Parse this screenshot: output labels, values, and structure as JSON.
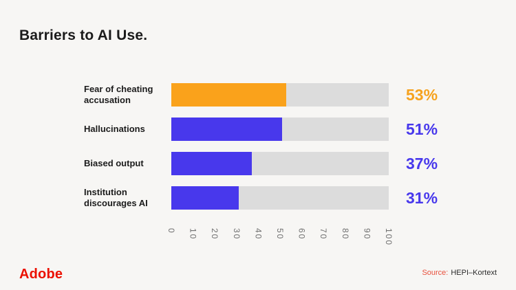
{
  "slide": {
    "background": "#F7F6F4",
    "title": "Barriers to AI Use.",
    "footer": {
      "logo_text": "Adobe",
      "logo_color": "#EB1000",
      "source_label": "Source:",
      "source_label_color": "#E8503C",
      "source_value": "HEPI–Kortext"
    }
  },
  "chart_data": {
    "type": "bar",
    "orientation": "horizontal",
    "title": "Barriers to AI Use.",
    "categories": [
      "Fear of cheating accusation",
      "Hallucinations",
      "Biased output",
      "Institution discourages AI"
    ],
    "values": [
      53,
      51,
      37,
      31
    ],
    "value_labels": [
      "53%",
      "51%",
      "37%",
      "31%"
    ],
    "bar_colors": [
      "#FAA21B",
      "#4838EC",
      "#4838EC",
      "#4838EC"
    ],
    "value_label_colors": [
      "#F6A21E",
      "#4838EC",
      "#4838EC",
      "#4838EC"
    ],
    "track_color": "#DCDCDC",
    "xlabel": "",
    "ylabel": "",
    "xlim": [
      0,
      100
    ],
    "x_ticks": [
      0,
      10,
      20,
      30,
      40,
      50,
      60,
      70,
      80,
      90,
      100
    ],
    "x_tick_rotation_deg": 90,
    "grid": false,
    "legend": null
  }
}
